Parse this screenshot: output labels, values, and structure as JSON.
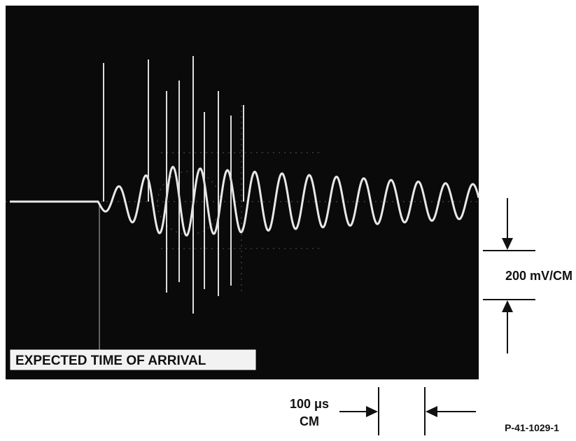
{
  "screen": {
    "label": "EXPECTED TIME OF ARRIVAL"
  },
  "vertical_scale": {
    "label": "200 mV/CM"
  },
  "horizontal_scale": {
    "label_line1": "100 μs",
    "label_line2": "CM"
  },
  "figure_id": "P-41-1029-1"
}
